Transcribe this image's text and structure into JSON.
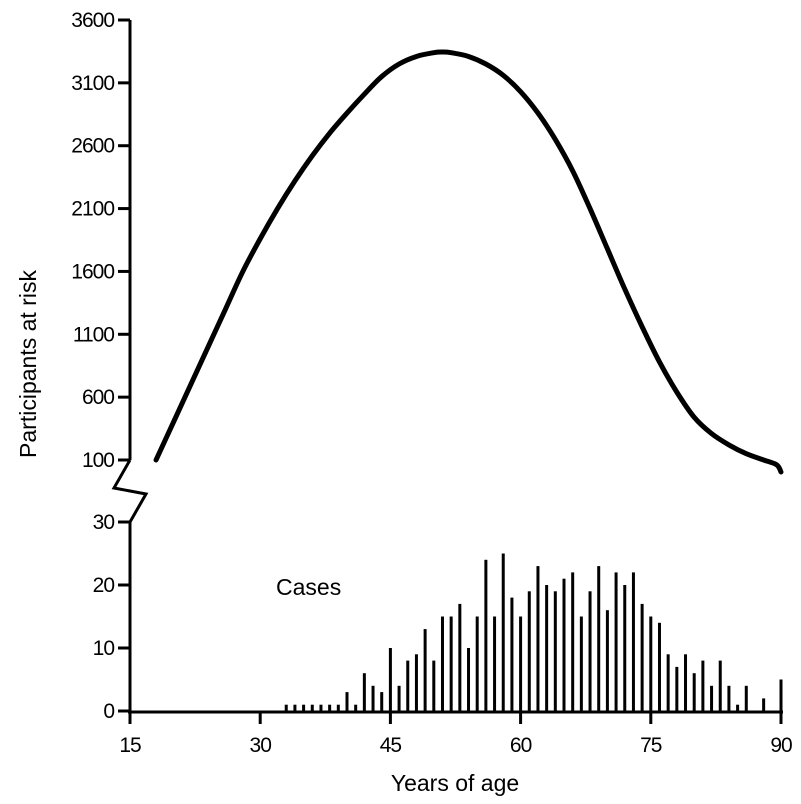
{
  "chart_data": {
    "type": "line+bar",
    "xlabel": "Years of age",
    "ylabel": "Participants at risk",
    "annotation": "Cases",
    "x_axis": {
      "min": 15,
      "max": 90,
      "ticks": [
        15,
        30,
        45,
        60,
        75,
        90
      ]
    },
    "y_axis_upper": {
      "min": 100,
      "max": 3600,
      "ticks": [
        100,
        600,
        1100,
        1600,
        2100,
        2600,
        3100,
        3600
      ]
    },
    "y_axis_lower": {
      "min": 0,
      "max": 30,
      "ticks": [
        0,
        10,
        20,
        30
      ]
    },
    "axis_break": true,
    "series": [
      {
        "type": "line",
        "x": [
          18,
          20,
          22,
          24,
          26,
          28,
          30,
          32,
          34,
          36,
          38,
          40,
          42,
          44,
          46,
          48,
          50,
          51,
          52,
          54,
          56,
          58,
          60,
          62,
          64,
          66,
          68,
          70,
          72,
          74,
          76,
          78,
          80,
          82,
          84,
          86,
          88,
          89.5,
          90
        ],
        "y": [
          100,
          400,
          700,
          1000,
          1300,
          1600,
          1860,
          2100,
          2320,
          2520,
          2700,
          2860,
          3010,
          3150,
          3250,
          3310,
          3340,
          3345,
          3340,
          3310,
          3250,
          3160,
          3030,
          2860,
          2650,
          2400,
          2100,
          1780,
          1460,
          1160,
          880,
          640,
          440,
          310,
          220,
          150,
          100,
          60,
          0
        ]
      },
      {
        "type": "bar",
        "x": [
          33,
          34,
          35,
          36,
          37,
          38,
          39,
          40,
          41,
          42,
          43,
          44,
          45,
          46,
          47,
          48,
          49,
          50,
          51,
          52,
          53,
          54,
          55,
          56,
          57,
          58,
          59,
          60,
          61,
          62,
          63,
          64,
          65,
          66,
          67,
          68,
          69,
          70,
          71,
          72,
          73,
          74,
          75,
          76,
          77,
          78,
          79,
          80,
          81,
          82,
          83,
          84,
          85,
          86,
          87,
          88,
          89,
          90
        ],
        "y": [
          1,
          1,
          1,
          1,
          1,
          1,
          1,
          3,
          1,
          6,
          4,
          3,
          10,
          4,
          8,
          9,
          13,
          8,
          15,
          15,
          17,
          10,
          15,
          24,
          15,
          25,
          18,
          15,
          19,
          23,
          20,
          19,
          21,
          22,
          15,
          19,
          23,
          16,
          22,
          20,
          22,
          17,
          15,
          14,
          9,
          7,
          9,
          6,
          8,
          4,
          8,
          4,
          1,
          4,
          0,
          2,
          0,
          5
        ]
      }
    ]
  }
}
